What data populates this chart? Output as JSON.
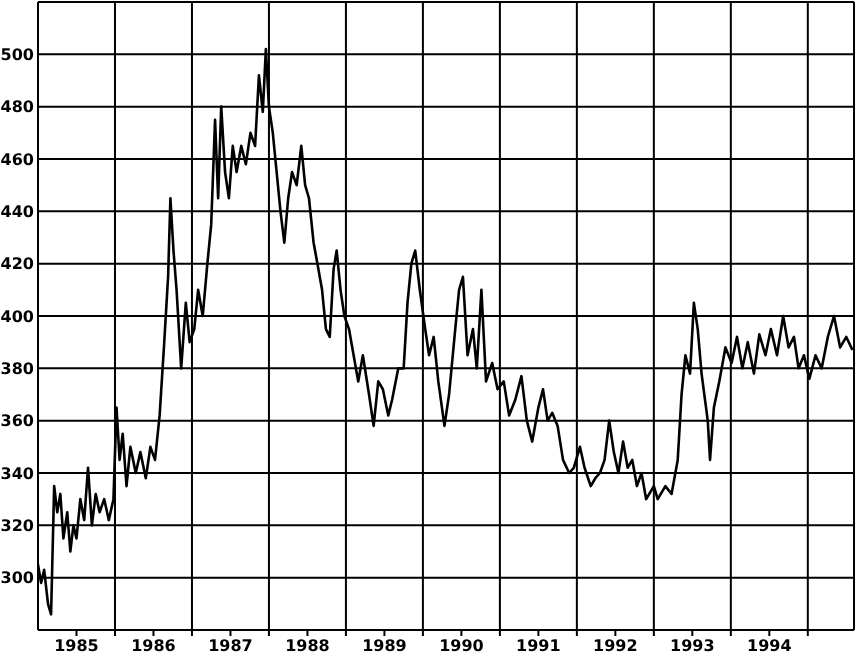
{
  "chart_data": {
    "type": "line",
    "x": [
      1985.0,
      1985.04,
      1985.08,
      1985.13,
      1985.17,
      1985.21,
      1985.25,
      1985.29,
      1985.33,
      1985.38,
      1985.42,
      1985.46,
      1985.5,
      1985.55,
      1985.6,
      1985.65,
      1985.7,
      1985.75,
      1985.8,
      1985.86,
      1985.92,
      1985.98,
      1986.02,
      1986.06,
      1986.1,
      1986.15,
      1986.2,
      1986.27,
      1986.33,
      1986.4,
      1986.46,
      1986.52,
      1986.58,
      1986.64,
      1986.69,
      1986.72,
      1986.76,
      1986.8,
      1986.86,
      1986.92,
      1986.97,
      1987.03,
      1987.08,
      1987.14,
      1987.2,
      1987.25,
      1987.3,
      1987.34,
      1987.38,
      1987.43,
      1987.48,
      1987.53,
      1987.58,
      1987.64,
      1987.7,
      1987.76,
      1987.82,
      1987.87,
      1987.92,
      1987.96,
      1988.0,
      1988.05,
      1988.1,
      1988.15,
      1988.2,
      1988.25,
      1988.3,
      1988.36,
      1988.42,
      1988.47,
      1988.52,
      1988.58,
      1988.63,
      1988.69,
      1988.74,
      1988.79,
      1988.84,
      1988.88,
      1988.93,
      1988.98,
      1989.04,
      1989.1,
      1989.16,
      1989.22,
      1989.3,
      1989.36,
      1989.42,
      1989.48,
      1989.55,
      1989.6,
      1989.68,
      1989.75,
      1989.8,
      1989.85,
      1989.9,
      1989.96,
      1990.03,
      1990.08,
      1990.14,
      1990.2,
      1990.28,
      1990.34,
      1990.42,
      1990.47,
      1990.52,
      1990.58,
      1990.65,
      1990.7,
      1990.76,
      1990.82,
      1990.9,
      1990.97,
      1991.05,
      1991.12,
      1991.2,
      1991.28,
      1991.35,
      1991.42,
      1991.5,
      1991.56,
      1991.62,
      1991.68,
      1991.75,
      1991.82,
      1991.9,
      1991.96,
      1992.04,
      1992.1,
      1992.18,
      1992.24,
      1992.3,
      1992.36,
      1992.42,
      1992.48,
      1992.54,
      1992.6,
      1992.66,
      1992.72,
      1992.78,
      1992.84,
      1992.9,
      1992.96,
      1993.0,
      1993.05,
      1993.15,
      1993.23,
      1993.31,
      1993.36,
      1993.41,
      1993.47,
      1993.52,
      1993.57,
      1993.62,
      1993.7,
      1993.73,
      1993.78,
      1993.85,
      1993.93,
      1994.01,
      1994.08,
      1994.15,
      1994.22,
      1994.3,
      1994.37,
      1994.45,
      1994.52,
      1994.6,
      1994.68,
      1994.75,
      1994.82,
      1994.88,
      1994.95,
      1995.02,
      1995.1,
      1995.18,
      1995.26,
      1995.34,
      1995.42,
      1995.5,
      1995.58
    ],
    "series": [
      {
        "color": "#000000",
        "values": [
          305,
          298,
          303,
          290,
          286,
          335,
          325,
          332,
          315,
          325,
          310,
          320,
          315,
          330,
          322,
          342,
          320,
          332,
          325,
          330,
          322,
          330,
          365,
          345,
          355,
          335,
          350,
          340,
          348,
          338,
          350,
          345,
          362,
          390,
          415,
          445,
          425,
          410,
          380,
          405,
          390,
          395,
          410,
          400,
          420,
          435,
          475,
          445,
          480,
          455,
          445,
          465,
          455,
          465,
          458,
          470,
          465,
          492,
          478,
          502,
          480,
          470,
          455,
          440,
          428,
          445,
          455,
          450,
          465,
          450,
          445,
          428,
          420,
          410,
          395,
          392,
          418,
          425,
          410,
          400,
          395,
          385,
          375,
          385,
          370,
          358,
          375,
          372,
          362,
          368,
          380,
          380,
          405,
          420,
          425,
          410,
          395,
          385,
          392,
          375,
          358,
          370,
          395,
          410,
          415,
          385,
          395,
          380,
          410,
          375,
          382,
          372,
          375,
          362,
          368,
          377,
          360,
          352,
          365,
          372,
          360,
          363,
          358,
          345,
          340,
          342,
          350,
          342,
          335,
          338,
          340,
          345,
          360,
          348,
          340,
          352,
          342,
          345,
          335,
          340,
          330,
          333,
          335,
          330,
          335,
          332,
          345,
          370,
          385,
          378,
          405,
          395,
          378,
          360,
          345,
          365,
          375,
          388,
          382,
          392,
          380,
          390,
          378,
          393,
          385,
          395,
          385,
          400,
          388,
          392,
          380,
          385,
          376,
          385,
          380,
          392,
          400,
          388,
          392,
          387
        ]
      }
    ],
    "xlim": [
      1985,
      1995.6
    ],
    "xticks": [
      {
        "value": 1985.5,
        "label": "1985"
      },
      {
        "value": 1986,
        "label": null
      },
      {
        "value": 1986.5,
        "label": "1986"
      },
      {
        "value": 1987,
        "label": null
      },
      {
        "value": 1987.5,
        "label": "1987"
      },
      {
        "value": 1988,
        "label": null
      },
      {
        "value": 1988.5,
        "label": "1988"
      },
      {
        "value": 1989,
        "label": null
      },
      {
        "value": 1989.5,
        "label": "1989"
      },
      {
        "value": 1990,
        "label": null
      },
      {
        "value": 1990.5,
        "label": "1990"
      },
      {
        "value": 1991,
        "label": null
      },
      {
        "value": 1991.5,
        "label": "1991"
      },
      {
        "value": 1992,
        "label": null
      },
      {
        "value": 1992.5,
        "label": "1992"
      },
      {
        "value": 1993,
        "label": null
      },
      {
        "value": 1993.5,
        "label": "1993"
      },
      {
        "value": 1994,
        "label": null
      },
      {
        "value": 1994.5,
        "label": "1994"
      },
      {
        "value": 1995,
        "label": null
      }
    ],
    "ylim": [
      280,
      520
    ],
    "yticks": [
      300,
      320,
      340,
      360,
      380,
      400,
      420,
      440,
      460,
      480,
      500
    ],
    "grid": true,
    "marker": "none",
    "line_style": "solid"
  }
}
